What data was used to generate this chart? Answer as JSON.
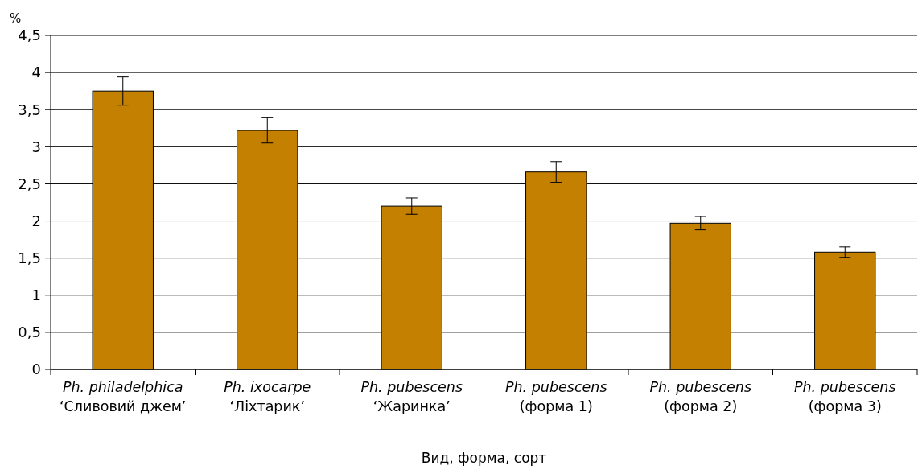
{
  "chart_data": {
    "type": "bar",
    "xlabel": "Вид, форма, сорт",
    "ylabel": "%",
    "categories": [
      "Ph. philadelphica\n‘Сливовий джем’",
      "Ph. ixocarpe\n‘Ліхтарик’",
      "Ph. pubescens\n‘Жаринка’",
      "Ph. pubescens\n(форма 1)",
      "Ph. pubescens\n(форма 2)",
      "Ph. pubescens\n(форма 3)"
    ],
    "values": [
      3.75,
      3.22,
      2.2,
      2.66,
      1.97,
      1.58
    ],
    "errors": [
      0.19,
      0.17,
      0.11,
      0.14,
      0.09,
      0.07
    ],
    "color": "#c48000",
    "ylim": [
      0,
      4.5
    ],
    "yticks": [
      0,
      {
        "value": 0.5,
        "label": "0,5"
      },
      1,
      {
        "value": 1.5,
        "label": "1,5"
      },
      2,
      {
        "value": 2.5,
        "label": "2,5"
      },
      3,
      {
        "value": 3.5,
        "label": "3,5"
      },
      4,
      {
        "value": 4.5,
        "label": "4,5"
      }
    ],
    "grid": "y"
  }
}
